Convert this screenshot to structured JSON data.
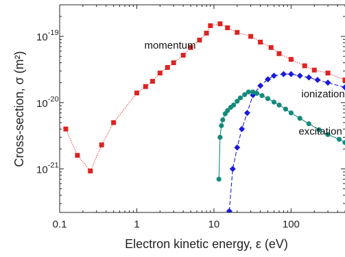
{
  "chart_data": {
    "type": "scatter",
    "title": "",
    "xlabel": "Electron kinetic energy, ε (eV)",
    "ylabel": "Cross-section, σ (m²)",
    "x_scale": "log",
    "y_scale": "log",
    "xlim": [
      0.1,
      500
    ],
    "ylim": [
      2.2e-22,
      3e-19
    ],
    "grid": false,
    "x_ticks": [
      {
        "value": 0.1,
        "label": "0.1"
      },
      {
        "value": 1,
        "label": "1"
      },
      {
        "value": 10,
        "label": "10"
      },
      {
        "value": 100,
        "label": "100"
      }
    ],
    "y_ticks": [
      {
        "value": 1e-21,
        "base": "10",
        "exp": "-21"
      },
      {
        "value": 1e-20,
        "base": "10",
        "exp": "-20"
      },
      {
        "value": 1e-19,
        "base": "10",
        "exp": "-19"
      }
    ],
    "series": [
      {
        "name": "momentum",
        "color": "#dd2222",
        "marker": "square",
        "line_style": "dotted",
        "label_pos": {
          "x": 2.7,
          "y": 6.5e-20
        },
        "points": [
          {
            "x": 0.12,
            "y": 4e-21
          },
          {
            "x": 0.17,
            "y": 1.6e-21
          },
          {
            "x": 0.25,
            "y": 9.3e-22
          },
          {
            "x": 0.35,
            "y": 2.3e-21
          },
          {
            "x": 0.5,
            "y": 5e-21
          },
          {
            "x": 1.0,
            "y": 1.4e-20
          },
          {
            "x": 1.3,
            "y": 1.75e-20
          },
          {
            "x": 1.6,
            "y": 2.1e-20
          },
          {
            "x": 2.0,
            "y": 2.8e-20
          },
          {
            "x": 2.5,
            "y": 3.4e-20
          },
          {
            "x": 3.0,
            "y": 4e-20
          },
          {
            "x": 4.0,
            "y": 5.2e-20
          },
          {
            "x": 5.0,
            "y": 6.8e-20
          },
          {
            "x": 6.5,
            "y": 8.8e-20
          },
          {
            "x": 8.0,
            "y": 1.12e-19
          },
          {
            "x": 9.0,
            "y": 1.45e-19
          },
          {
            "x": 12.0,
            "y": 1.55e-19
          },
          {
            "x": 15.0,
            "y": 1.35e-19
          },
          {
            "x": 20.0,
            "y": 1.15e-19
          },
          {
            "x": 30.0,
            "y": 1e-19
          },
          {
            "x": 40.0,
            "y": 8.2e-20
          },
          {
            "x": 55.0,
            "y": 6.8e-20
          },
          {
            "x": 70.0,
            "y": 5.5e-20
          },
          {
            "x": 100.0,
            "y": 4.5e-20
          },
          {
            "x": 150.0,
            "y": 3.6e-20
          },
          {
            "x": 200.0,
            "y": 3.1e-20
          },
          {
            "x": 300.0,
            "y": 2.8e-20
          },
          {
            "x": 500.0,
            "y": 2.2e-20
          }
        ]
      },
      {
        "name": "ionization",
        "color": "#1a1adb",
        "marker": "diamond",
        "line_style": "dashed",
        "label_pos": {
          "x": 260,
          "y": 1.2e-20
        },
        "points": [
          {
            "x": 15.8,
            "y": 2.3e-22
          },
          {
            "x": 17.5,
            "y": 1e-21
          },
          {
            "x": 20.0,
            "y": 2.1e-21
          },
          {
            "x": 23.0,
            "y": 4e-21
          },
          {
            "x": 27.0,
            "y": 7e-21
          },
          {
            "x": 32.0,
            "y": 1.3e-20
          },
          {
            "x": 40.0,
            "y": 1.8e-20
          },
          {
            "x": 50.0,
            "y": 2.25e-20
          },
          {
            "x": 60.0,
            "y": 2.55e-20
          },
          {
            "x": 80.0,
            "y": 2.7e-20
          },
          {
            "x": 100.0,
            "y": 2.7e-20
          },
          {
            "x": 130.0,
            "y": 2.55e-20
          },
          {
            "x": 170.0,
            "y": 2.4e-20
          },
          {
            "x": 220.0,
            "y": 2.2e-20
          },
          {
            "x": 300.0,
            "y": 2e-20
          },
          {
            "x": 500.0,
            "y": 1.7e-20
          }
        ]
      },
      {
        "name": "excitation",
        "color": "#158a7c",
        "marker": "circle",
        "line_style": "solid",
        "label_pos": {
          "x": 240,
          "y": 3.3e-21
        },
        "points": [
          {
            "x": 11.6,
            "y": 7e-22
          },
          {
            "x": 12.0,
            "y": 3e-21
          },
          {
            "x": 12.5,
            "y": 4.5e-21
          },
          {
            "x": 13.0,
            "y": 5.5e-21
          },
          {
            "x": 14.0,
            "y": 6.8e-21
          },
          {
            "x": 15.0,
            "y": 7.6e-21
          },
          {
            "x": 16.5,
            "y": 8.5e-21
          },
          {
            "x": 18.0,
            "y": 9.2e-21
          },
          {
            "x": 20.0,
            "y": 1.05e-20
          },
          {
            "x": 22.0,
            "y": 1.18e-20
          },
          {
            "x": 25.0,
            "y": 1.32e-20
          },
          {
            "x": 28.0,
            "y": 1.45e-20
          },
          {
            "x": 32.0,
            "y": 1.45e-20
          },
          {
            "x": 36.0,
            "y": 1.38e-20
          },
          {
            "x": 42.0,
            "y": 1.28e-20
          },
          {
            "x": 50.0,
            "y": 1.15e-20
          },
          {
            "x": 60.0,
            "y": 1.02e-20
          },
          {
            "x": 70.0,
            "y": 9.2e-21
          },
          {
            "x": 85.0,
            "y": 8e-21
          },
          {
            "x": 100.0,
            "y": 7e-21
          },
          {
            "x": 130.0,
            "y": 5.8e-21
          },
          {
            "x": 170.0,
            "y": 4.8e-21
          },
          {
            "x": 230.0,
            "y": 3.9e-21
          },
          {
            "x": 300.0,
            "y": 3.3e-21
          },
          {
            "x": 420.0,
            "y": 2.8e-21
          },
          {
            "x": 500.0,
            "y": 2.5e-21
          }
        ]
      }
    ]
  }
}
